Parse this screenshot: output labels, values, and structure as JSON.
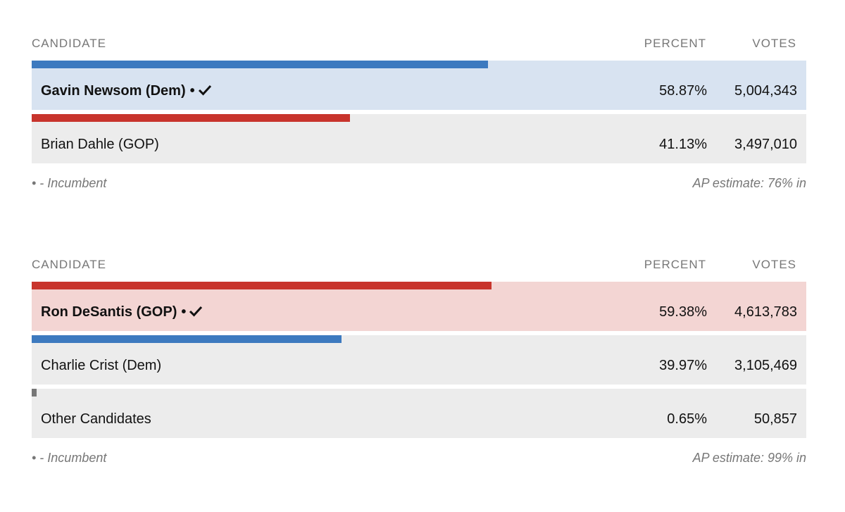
{
  "colors": {
    "dem_bar": "#3d7abf",
    "gop_bar": "#c8342c",
    "other_bar": "#777777",
    "dem_winner_bg": "#d8e3f1",
    "gop_winner_bg": "#f3d5d3",
    "row_bg": "#ececec"
  },
  "chart_data": [
    {
      "type": "bar",
      "headers": {
        "candidate": "CANDIDATE",
        "percent": "PERCENT",
        "votes": "VOTES"
      },
      "candidates": [
        {
          "name": "Gavin Newsom (Dem)",
          "party": "Dem",
          "percent": 58.87,
          "percent_label": "58.87%",
          "votes": 5004343,
          "votes_label": "5,004,343",
          "incumbent": true,
          "winner": true
        },
        {
          "name": "Brian Dahle (GOP)",
          "party": "GOP",
          "percent": 41.13,
          "percent_label": "41.13%",
          "votes": 3497010,
          "votes_label": "3,497,010",
          "incumbent": false,
          "winner": false
        }
      ],
      "footnote": "• - Incumbent",
      "estimate": "AP estimate: 76% in"
    },
    {
      "type": "bar",
      "headers": {
        "candidate": "CANDIDATE",
        "percent": "PERCENT",
        "votes": "VOTES"
      },
      "candidates": [
        {
          "name": "Ron DeSantis (GOP)",
          "party": "GOP",
          "percent": 59.38,
          "percent_label": "59.38%",
          "votes": 4613783,
          "votes_label": "4,613,783",
          "incumbent": true,
          "winner": true
        },
        {
          "name": "Charlie Crist (Dem)",
          "party": "Dem",
          "percent": 39.97,
          "percent_label": "39.97%",
          "votes": 3105469,
          "votes_label": "3,105,469",
          "incumbent": false,
          "winner": false
        },
        {
          "name": "Other Candidates",
          "party": "Other",
          "percent": 0.65,
          "percent_label": "0.65%",
          "votes": 50857,
          "votes_label": "50,857",
          "incumbent": false,
          "winner": false
        }
      ],
      "footnote": "• - Incumbent",
      "estimate": "AP estimate: 99% in"
    }
  ]
}
